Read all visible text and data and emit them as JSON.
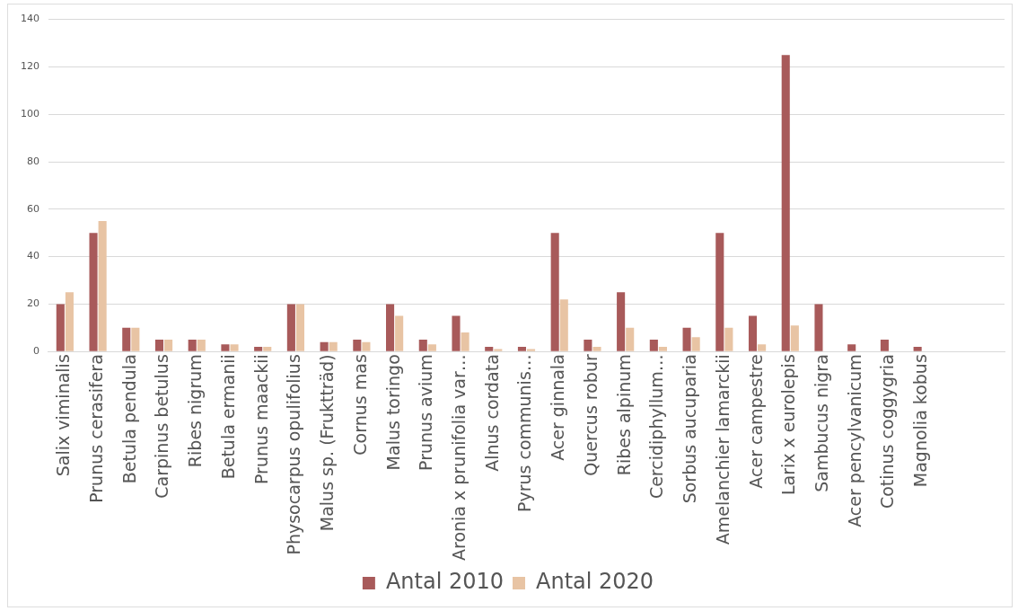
{
  "chart_data": {
    "type": "bar",
    "categories": [
      "Salix viminalis",
      "Prunus cerasifera",
      "Betula pendula",
      "Carpinus betulus",
      "Ribes nigrum",
      "Betula ermanii",
      "Prunus maackii",
      "Physocarpus opulifolius",
      "Malus sp. (Fruktträd)",
      "Cornus mas",
      "Malus toringo",
      "Prunus avium",
      "Aronia x prunifolia var…",
      "Alnus cordata",
      "Pyrus communis…",
      "Acer ginnala",
      "Quercus robur",
      "Ribes alpinum",
      "Cercidiphyllum…",
      "Sorbus aucuparia",
      "Amelanchier lamarckii",
      "Acer campestre",
      "Larix x eurolepis",
      "Sambucus nigra",
      "Acer pencylvanicum",
      "Cotinus coggygria",
      "Magnolia kobus",
      null,
      null
    ],
    "series": [
      {
        "name": "Antal 2010",
        "color": "#a85a5a",
        "values": [
          20,
          50,
          10,
          5,
          5,
          3,
          2,
          20,
          4,
          5,
          20,
          5,
          15,
          2,
          2,
          50,
          5,
          25,
          5,
          10,
          50,
          15,
          125,
          20,
          3,
          5,
          2,
          null,
          null
        ]
      },
      {
        "name": "Antal 2020",
        "color": "#e8c4a4",
        "values": [
          25,
          55,
          10,
          5,
          5,
          3,
          2,
          20,
          4,
          4,
          15,
          3,
          8,
          1,
          1,
          22,
          2,
          10,
          2,
          6,
          10,
          3,
          11,
          null,
          null,
          null,
          null,
          null,
          null
        ]
      }
    ],
    "ylim": [
      0,
      140
    ],
    "yticks": [
      0,
      20,
      40,
      60,
      80,
      100,
      120,
      140
    ],
    "grid": "y",
    "legend": "bottom"
  }
}
